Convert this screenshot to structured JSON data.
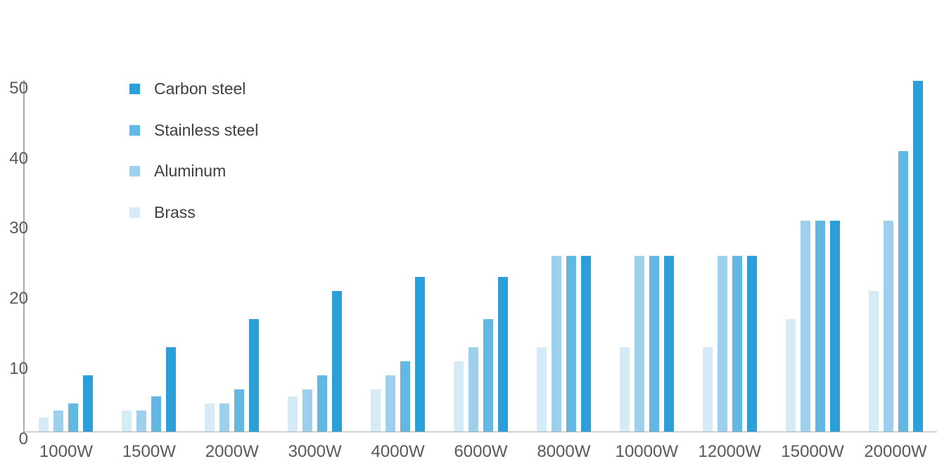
{
  "chart_data": {
    "type": "bar",
    "title": "",
    "xlabel": "",
    "ylabel": "",
    "categories": [
      "1000W",
      "1500W",
      "2000W",
      "3000W",
      "4000W",
      "6000W",
      "8000W",
      "10000W",
      "12000W",
      "15000W",
      "20000W"
    ],
    "series": [
      {
        "name": "Carbon steel",
        "color": "#2d9fd8",
        "values": [
          8,
          12,
          16,
          20,
          22,
          22,
          25,
          25,
          25,
          30,
          50
        ]
      },
      {
        "name": "Stainless steel",
        "color": "#62b8e2",
        "values": [
          4,
          5,
          6,
          8,
          10,
          16,
          25,
          25,
          25,
          30,
          40
        ]
      },
      {
        "name": "Aluminum",
        "color": "#9cd0ed",
        "values": [
          3,
          3,
          4,
          6,
          8,
          12,
          25,
          25,
          25,
          30,
          30
        ]
      },
      {
        "name": "Brass",
        "color": "#d6ebf8",
        "values": [
          2,
          3,
          4,
          5,
          6,
          10,
          12,
          12,
          12,
          16,
          20
        ]
      }
    ],
    "bar_order_left_to_right": [
      "Brass",
      "Aluminum",
      "Stainless steel",
      "Carbon steel"
    ],
    "ylim": [
      0,
      50
    ],
    "yticks": [
      0,
      10,
      20,
      30,
      40,
      50
    ],
    "grid": false,
    "legend_position": "top-left",
    "axis_line_color": "#ababab",
    "tick_label_color": "#595959",
    "legend_text_color": "#3f3f3f",
    "background_color": "#ffffff"
  }
}
